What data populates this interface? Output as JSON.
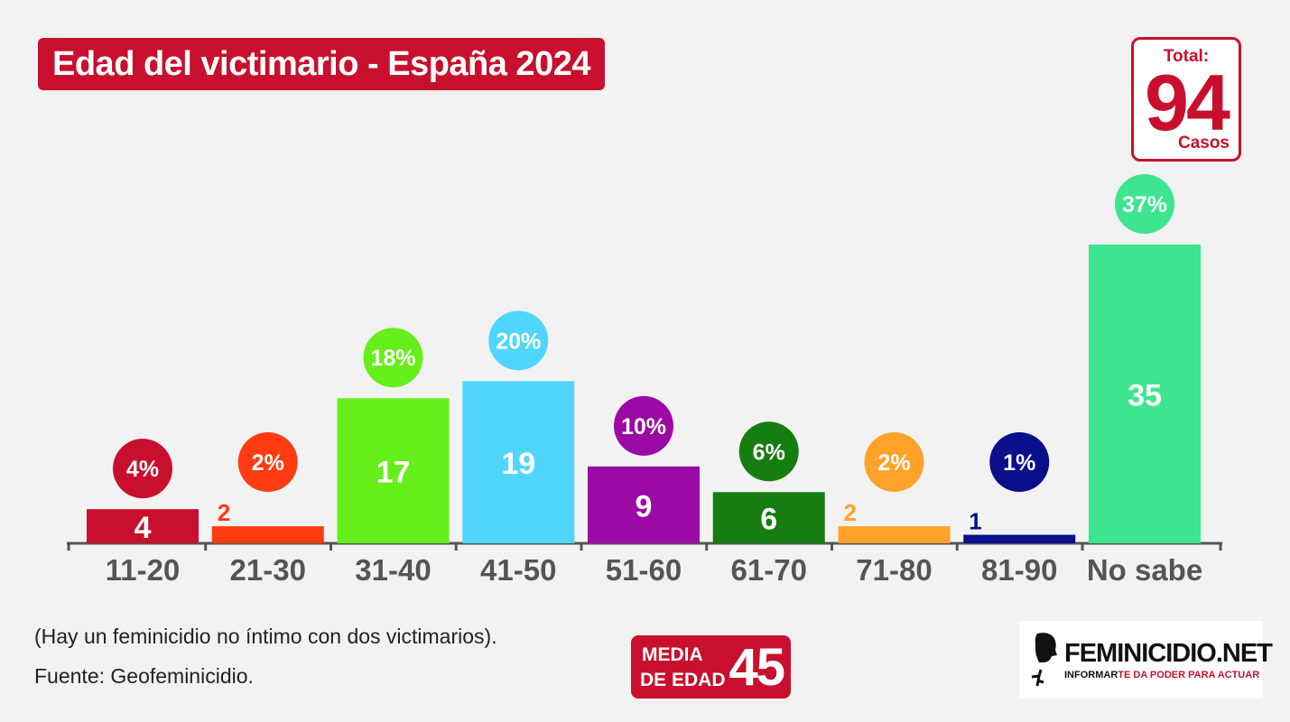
{
  "title": "Edad del victimario - España 2024",
  "total": {
    "label": "Total:",
    "value": "94",
    "unit": "Casos"
  },
  "chart_data": {
    "type": "bar",
    "categories": [
      "11-20",
      "21-30",
      "31-40",
      "41-50",
      "51-60",
      "61-70",
      "71-80",
      "81-90",
      "No sabe"
    ],
    "values": [
      4,
      2,
      17,
      19,
      9,
      6,
      2,
      1,
      35
    ],
    "percent_labels": [
      "4%",
      "2%",
      "18%",
      "20%",
      "10%",
      "6%",
      "2%",
      "1%",
      "37%"
    ],
    "colors": [
      "#c8102e",
      "#ff3b12",
      "#66ee1a",
      "#50d6fe",
      "#9b0aa4",
      "#167d10",
      "#ffa22a",
      "#0a0f8c",
      "#3de590"
    ],
    "ylim": [
      0,
      35
    ]
  },
  "footnotes": {
    "note": "(Hay un feminicidio no íntimo con dos victimarios).",
    "source": "Fuente: Geofeminicidio."
  },
  "media": {
    "line1": "MEDIA",
    "line2": "DE EDAD",
    "value": "45"
  },
  "logo": {
    "name": "FEMINICIDIO.NET",
    "tagline_part1": "INFORMAR",
    "tagline_part2": "TE DA PODER PARA ACTUAR"
  }
}
